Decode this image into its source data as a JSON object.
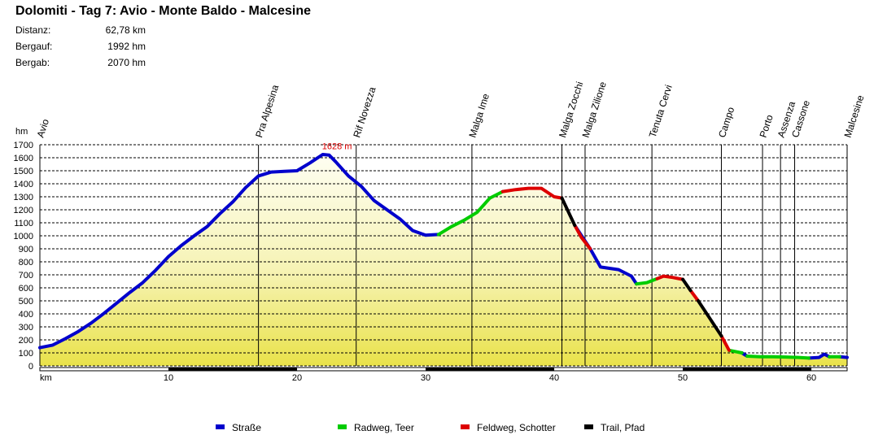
{
  "header": {
    "title": "Dolomiti - Tag 7: Avio - Monte Baldo - Malcesine",
    "stats": [
      {
        "label": "Distanz:",
        "value": "62,78 km"
      },
      {
        "label": "Bergauf:",
        "value": "1992 hm"
      },
      {
        "label": "Bergab:",
        "value": "2070 hm"
      }
    ]
  },
  "chart_data": {
    "type": "area",
    "title": "Dolomiti - Tag 7: Avio - Monte Baldo - Malcesine",
    "xlabel": "km",
    "ylabel": "hm",
    "xlim": [
      0,
      62.78
    ],
    "ylim": [
      0,
      1700
    ],
    "x_ticks": [
      10,
      20,
      30,
      40,
      50,
      60
    ],
    "y_ticks": [
      0,
      100,
      200,
      300,
      400,
      500,
      600,
      700,
      800,
      900,
      1000,
      1100,
      1200,
      1300,
      1400,
      1500,
      1600,
      1700
    ],
    "grid": true,
    "max_label": "1628 m",
    "max_point": {
      "x": 22.2,
      "y": 1628
    },
    "waypoints": [
      {
        "name": "Avio",
        "x": 0
      },
      {
        "name": "Pra Alpesina",
        "x": 17.0
      },
      {
        "name": "Rif Novezza",
        "x": 24.6
      },
      {
        "name": "Malga Ime",
        "x": 33.6
      },
      {
        "name": "Malga Zocchi",
        "x": 40.6
      },
      {
        "name": "Malga Zilione",
        "x": 42.4
      },
      {
        "name": "Tenuta Cervi",
        "x": 47.6
      },
      {
        "name": "Campo",
        "x": 53.0
      },
      {
        "name": "Porto",
        "x": 56.2
      },
      {
        "name": "Assenza",
        "x": 57.6
      },
      {
        "name": "Cassone",
        "x": 58.7
      },
      {
        "name": "Malcesine",
        "x": 62.78
      }
    ],
    "series": [
      {
        "name": "Straße",
        "color": "#0000cc",
        "segments": [
          [
            [
              0,
              140
            ],
            [
              1,
              160
            ],
            [
              2,
              210
            ],
            [
              3,
              265
            ],
            [
              4,
              330
            ],
            [
              5,
              405
            ],
            [
              6,
              485
            ],
            [
              7,
              565
            ],
            [
              8,
              640
            ],
            [
              9,
              735
            ],
            [
              10,
              840
            ],
            [
              11,
              925
            ],
            [
              12,
              1000
            ],
            [
              13,
              1070
            ],
            [
              14,
              1170
            ],
            [
              15,
              1260
            ],
            [
              16,
              1370
            ],
            [
              17,
              1460
            ],
            [
              18,
              1490
            ],
            [
              19,
              1495
            ],
            [
              20,
              1500
            ],
            [
              21,
              1560
            ],
            [
              22,
              1625
            ],
            [
              22.5,
              1620
            ],
            [
              23,
              1570
            ],
            [
              24,
              1460
            ],
            [
              25,
              1380
            ],
            [
              26,
              1270
            ],
            [
              27,
              1200
            ],
            [
              28,
              1130
            ],
            [
              29,
              1040
            ],
            [
              30,
              1005
            ],
            [
              31,
              1010
            ]
          ],
          [
            [
              41.6,
              1080
            ],
            [
              42.8,
              900
            ],
            [
              43.6,
              760
            ],
            [
              45,
              740
            ],
            [
              46,
              690
            ],
            [
              46.4,
              630
            ]
          ],
          [
            [
              54.6,
              100
            ],
            [
              55,
              75
            ]
          ],
          [
            [
              59.8,
              60
            ],
            [
              60.6,
              65
            ],
            [
              61,
              90
            ],
            [
              61.4,
              70
            ]
          ],
          [
            [
              62.2,
              70
            ],
            [
              62.78,
              65
            ]
          ]
        ]
      },
      {
        "name": "Radweg, Teer",
        "color": "#00cc00",
        "segments": [
          [
            [
              31,
              1010
            ],
            [
              32,
              1070
            ],
            [
              33,
              1120
            ],
            [
              34,
              1180
            ],
            [
              35,
              1290
            ],
            [
              36,
              1340
            ]
          ],
          [
            [
              46.4,
              630
            ],
            [
              47.2,
              640
            ],
            [
              48,
              670
            ]
          ],
          [
            [
              53.6,
              120
            ],
            [
              54.6,
              100
            ]
          ],
          [
            [
              55,
              75
            ],
            [
              56,
              70
            ],
            [
              57,
              70
            ],
            [
              58,
              68
            ],
            [
              59,
              65
            ],
            [
              59.8,
              60
            ]
          ],
          [
            [
              61.4,
              70
            ],
            [
              62.2,
              70
            ]
          ]
        ]
      },
      {
        "name": "Feldweg, Schotter",
        "color": "#dd0000",
        "segments": [
          [
            [
              36,
              1340
            ],
            [
              37,
              1355
            ],
            [
              38,
              1365
            ],
            [
              39,
              1365
            ],
            [
              40,
              1300
            ],
            [
              40.6,
              1290
            ]
          ],
          [
            [
              41.6,
              1080
            ],
            [
              42.1,
              990
            ],
            [
              42.8,
              900
            ]
          ],
          [
            [
              48,
              670
            ],
            [
              48.5,
              690
            ],
            [
              49.2,
              680
            ],
            [
              50,
              665
            ]
          ],
          [
            [
              50.6,
              580
            ],
            [
              51.2,
              500
            ]
          ],
          [
            [
              53,
              230
            ],
            [
              53.6,
              120
            ]
          ]
        ]
      },
      {
        "name": "Trail, Pfad",
        "color": "#000000",
        "segments": [
          [
            [
              40.6,
              1290
            ],
            [
              41.6,
              1080
            ]
          ],
          [
            [
              50,
              665
            ],
            [
              50.6,
              580
            ]
          ],
          [
            [
              51.2,
              500
            ],
            [
              52,
              380
            ],
            [
              53,
              230
            ]
          ]
        ]
      }
    ]
  },
  "legend": [
    {
      "label": "Straße",
      "color": "#0000cc"
    },
    {
      "label": "Radweg, Teer",
      "color": "#00cc00"
    },
    {
      "label": "Feldweg, Schotter",
      "color": "#dd0000"
    },
    {
      "label": "Trail, Pfad",
      "color": "#000000"
    }
  ]
}
